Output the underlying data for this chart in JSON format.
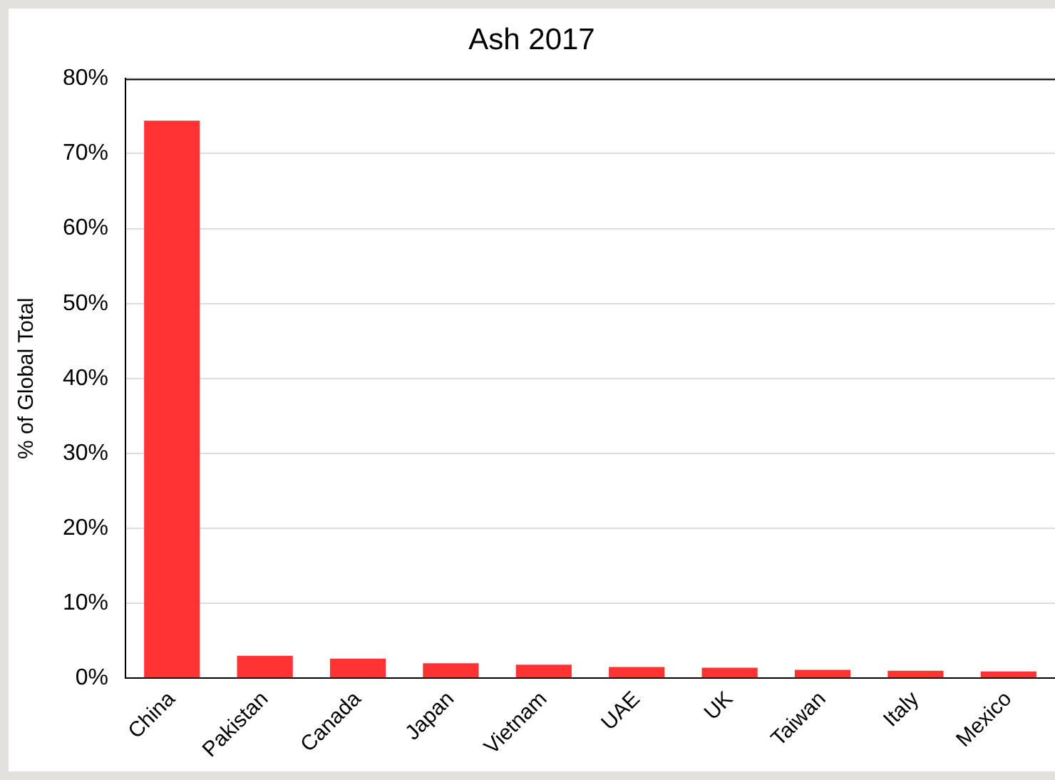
{
  "chart_data": {
    "type": "bar",
    "title": "Ash 2017",
    "ylabel": "% of Global Total",
    "categories": [
      "China",
      "Pakistan",
      "Canada",
      "Japan",
      "Vietnam",
      "UAE",
      "UK",
      "Taiwan",
      "Italy",
      "Mexico"
    ],
    "values": [
      74.4,
      3.0,
      2.6,
      2.0,
      1.8,
      1.5,
      1.4,
      1.1,
      1.0,
      0.9
    ],
    "color": "#ff3333",
    "ylim": [
      0,
      80
    ],
    "yticks": [
      {
        "value": 0,
        "label": "0%"
      },
      {
        "value": 10,
        "label": "10%"
      },
      {
        "value": 20,
        "label": "20%"
      },
      {
        "value": 30,
        "label": "30%"
      },
      {
        "value": 40,
        "label": "40%"
      },
      {
        "value": 50,
        "label": "50%"
      },
      {
        "value": 60,
        "label": "60%"
      },
      {
        "value": 70,
        "label": "70%"
      },
      {
        "value": 80,
        "label": "80%"
      }
    ],
    "grid": "y",
    "legend": false
  }
}
